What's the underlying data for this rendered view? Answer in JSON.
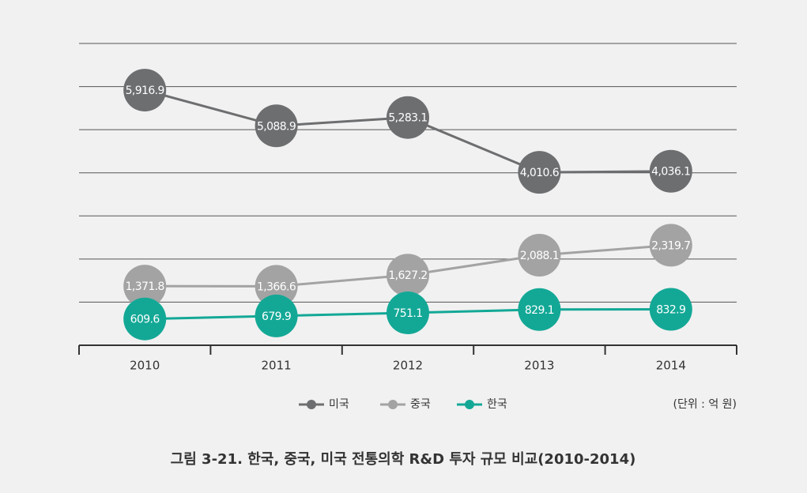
{
  "chart_data": {
    "type": "line",
    "categories": [
      "2010",
      "2011",
      "2012",
      "2013",
      "2014"
    ],
    "series": [
      {
        "name": "미국",
        "color": "#6d6e70",
        "values": [
          5916.9,
          5088.9,
          5283.1,
          4010.6,
          4036.1
        ],
        "value_labels": [
          "5,916.9",
          "5,088.9",
          "5,283.1",
          "4,010.6",
          "4,036.1"
        ]
      },
      {
        "name": "중국",
        "color": "#a3a3a4",
        "values": [
          1371.8,
          1366.6,
          1627.2,
          2088.1,
          2319.7
        ],
        "value_labels": [
          "1,371.8",
          "1,366.6",
          "1,627.2",
          "2,088.1",
          "2,319.7"
        ]
      },
      {
        "name": "한국",
        "color": "#13a896",
        "values": [
          609.6,
          679.9,
          751.1,
          829.1,
          832.9
        ],
        "value_labels": [
          "609.6",
          "679.9",
          "751.1",
          "829.1",
          "832.9"
        ]
      }
    ],
    "ylim": [
      0,
      7000
    ],
    "yticks": [
      1000,
      2000,
      3000,
      4000,
      5000,
      6000,
      7000
    ],
    "grid": true,
    "unit_note": "(단위 : 억 원)",
    "caption": "그림 3-21. 한국, 중국, 미국 전통의학 R&D 투자 규모 비교(2010-2014)"
  }
}
